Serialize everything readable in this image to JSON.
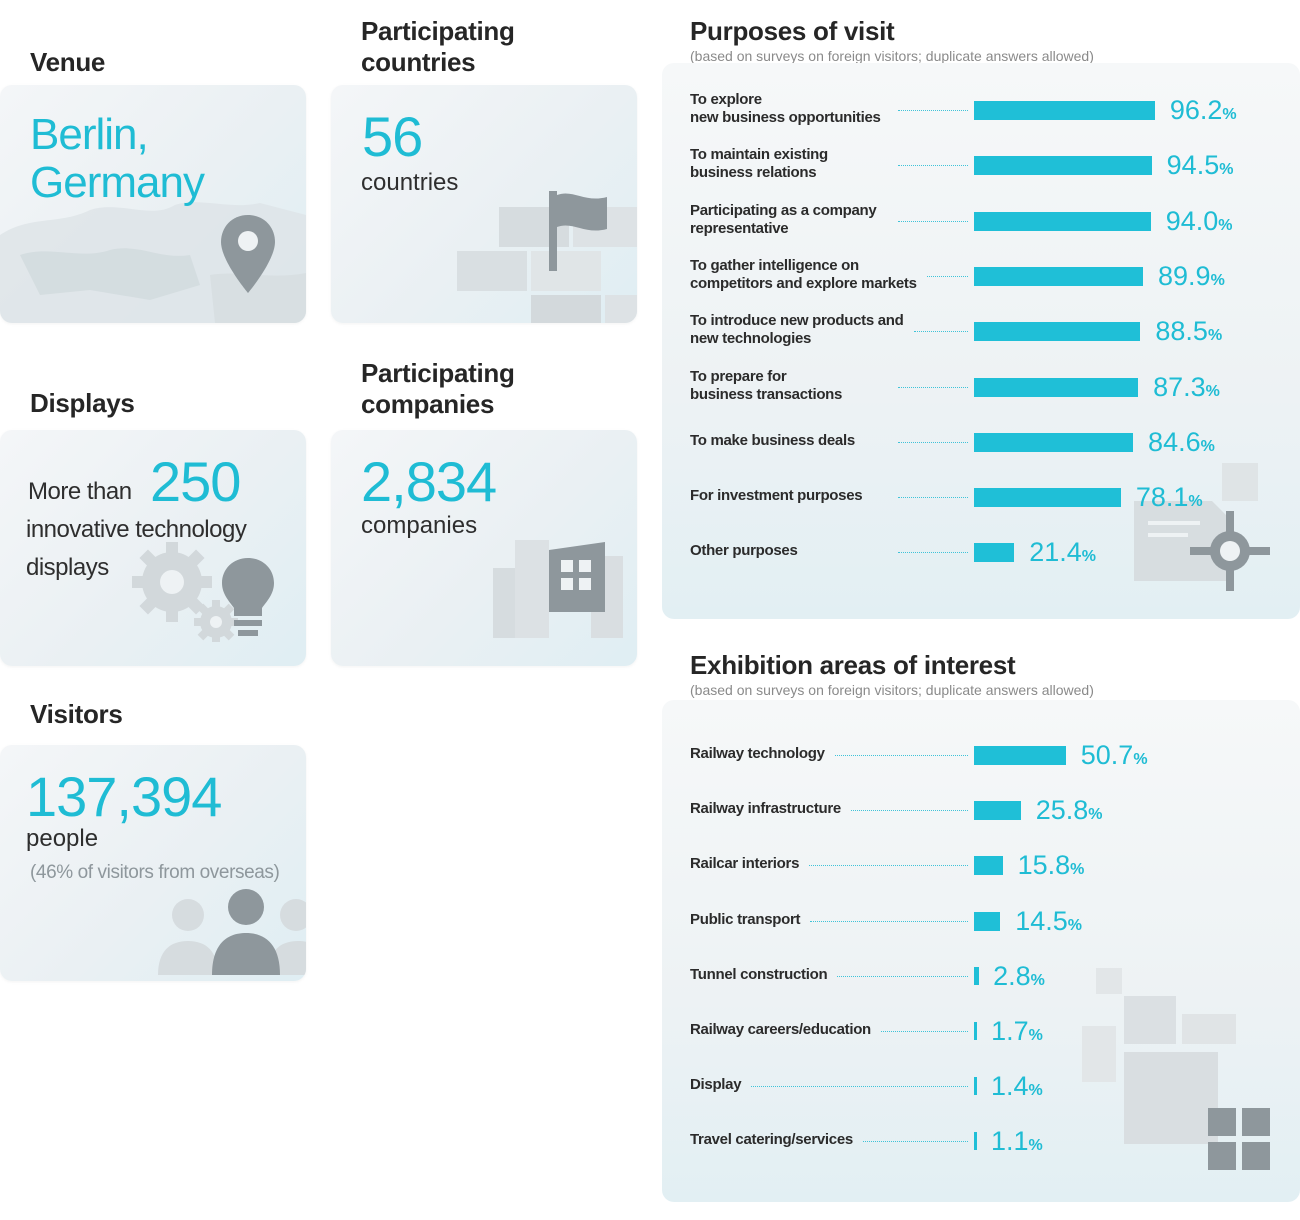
{
  "venue": {
    "heading": "Venue",
    "line1": "Berlin,",
    "line2": "Germany"
  },
  "countries": {
    "heading_line1": "Participating",
    "heading_line2": "countries",
    "value": "56",
    "unit": "countries"
  },
  "displays": {
    "heading": "Displays",
    "prefix": "More than",
    "value": "250",
    "line2": "innovative technology",
    "line3": "displays"
  },
  "companies": {
    "heading_line1": "Participating",
    "heading_line2": "companies",
    "value": "2,834",
    "unit": "companies"
  },
  "visitors": {
    "heading": "Visitors",
    "value": "137,394",
    "unit": "people",
    "note": "(46% of visitors from overseas)"
  },
  "icons": [
    "map-pin-icon",
    "flag-icon",
    "gears-icon",
    "lightbulb-icon",
    "building-icon",
    "people-icon",
    "document-icon",
    "crosshair-icon",
    "tiles-icon"
  ],
  "colors": {
    "accent": "#1fbfd7",
    "icon_gray": "#8d969b"
  },
  "chart_data": [
    {
      "type": "bar",
      "title": "Purposes of visit",
      "subtitle": "(based on surveys on foreign visitors; duplicate answers allowed)",
      "categories": [
        [
          "To explore",
          "new business opportunities"
        ],
        [
          "To maintain existing",
          "business relations"
        ],
        [
          "Participating as a company",
          "representative"
        ],
        [
          "To gather intelligence on",
          "competitors and explore markets"
        ],
        [
          "To introduce new products and",
          "new technologies"
        ],
        [
          "To prepare for",
          "business transactions"
        ],
        [
          "To make business deals"
        ],
        [
          "For investment purposes"
        ],
        [
          "Other purposes"
        ]
      ],
      "values": [
        96.2,
        94.5,
        94.0,
        89.9,
        88.5,
        87.3,
        84.6,
        78.1,
        21.4
      ],
      "value_labels": [
        "96.2",
        "94.5",
        "94.0",
        "89.9",
        "88.5",
        "87.3",
        "84.6",
        "78.1",
        "21.4"
      ],
      "unit": "%"
    },
    {
      "type": "bar",
      "title": "Exhibition areas of interest",
      "subtitle": "(based on surveys on foreign visitors; duplicate answers allowed)",
      "categories": [
        [
          "Railway technology"
        ],
        [
          "Railway infrastructure"
        ],
        [
          "Railcar interiors"
        ],
        [
          "Public transport"
        ],
        [
          "Tunnel construction"
        ],
        [
          "Railway careers/education"
        ],
        [
          "Display"
        ],
        [
          "Travel catering/services"
        ]
      ],
      "values": [
        50.7,
        25.8,
        15.8,
        14.5,
        2.8,
        1.7,
        1.4,
        1.1
      ],
      "value_labels": [
        "50.7",
        "25.8",
        "15.8",
        "14.5",
        "2.8",
        "1.7",
        "1.4",
        "1.1"
      ],
      "unit": "%"
    }
  ]
}
